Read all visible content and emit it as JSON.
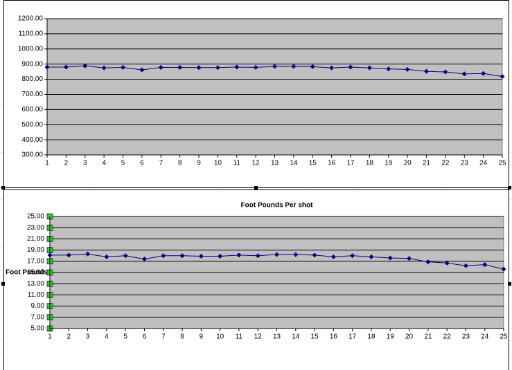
{
  "chart_data": [
    {
      "type": "line",
      "categories": [
        1,
        2,
        3,
        4,
        5,
        6,
        7,
        8,
        9,
        10,
        11,
        12,
        13,
        14,
        15,
        16,
        17,
        18,
        19,
        20,
        21,
        22,
        23,
        24,
        25
      ],
      "values": [
        880,
        880,
        888,
        875,
        878,
        862,
        878,
        878,
        877,
        877,
        880,
        878,
        885,
        885,
        883,
        875,
        880,
        875,
        868,
        865,
        852,
        848,
        835,
        838,
        818
      ],
      "color": "#000080",
      "ylim": [
        300,
        1200
      ],
      "yticks": [
        {
          "value": 300,
          "label": "300.00"
        },
        {
          "value": 400,
          "label": "400.00"
        },
        {
          "value": 500,
          "label": "500.00"
        },
        {
          "value": 600,
          "label": "600.00"
        },
        {
          "value": 700,
          "label": "700.00"
        },
        {
          "value": 800,
          "label": "800.00"
        },
        {
          "value": 900,
          "label": "900.00"
        },
        {
          "value": 1000,
          "label": "1000.00"
        },
        {
          "value": 1100,
          "label": "1100.00"
        },
        {
          "value": 1200,
          "label": "1200.00"
        }
      ],
      "grid": true
    },
    {
      "type": "line",
      "title": "Foot Pounds Per shot",
      "y_label": "Foot Pounds",
      "categories": [
        1,
        2,
        3,
        4,
        5,
        6,
        7,
        8,
        9,
        10,
        11,
        12,
        13,
        14,
        15,
        16,
        17,
        18,
        19,
        20,
        21,
        22,
        23,
        24,
        25
      ],
      "values": [
        18.1,
        18.1,
        18.3,
        17.8,
        18.0,
        17.4,
        18.0,
        18.0,
        17.9,
        17.9,
        18.1,
        18.0,
        18.2,
        18.2,
        18.1,
        17.8,
        18.0,
        17.8,
        17.6,
        17.5,
        16.9,
        16.7,
        16.2,
        16.4,
        15.6
      ],
      "color": "#000080",
      "ylim": [
        5,
        25
      ],
      "yticks": [
        {
          "value": 5,
          "label": "5.00"
        },
        {
          "value": 7,
          "label": "7.00"
        },
        {
          "value": 9,
          "label": "9.00"
        },
        {
          "value": 11,
          "label": "11.00"
        },
        {
          "value": 13,
          "label": "13.00"
        },
        {
          "value": 15,
          "label": "15.00"
        },
        {
          "value": 17,
          "label": "17.00"
        },
        {
          "value": 19,
          "label": "19.00"
        },
        {
          "value": 21,
          "label": "21.00"
        },
        {
          "value": 23,
          "label": "23.00"
        },
        {
          "value": 25,
          "label": "25.00"
        }
      ],
      "grid": true
    }
  ]
}
